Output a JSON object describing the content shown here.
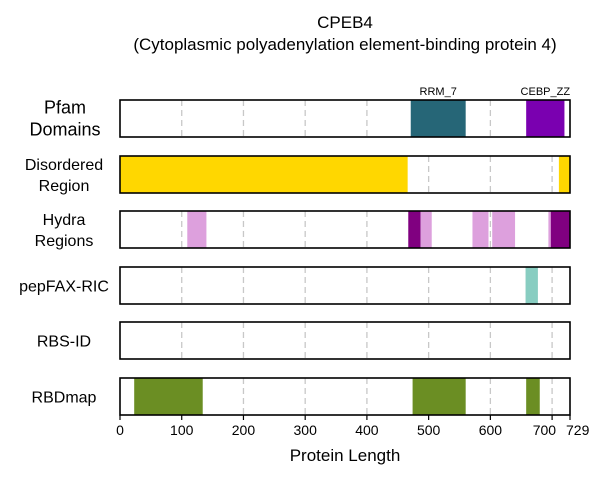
{
  "chart_data": {
    "type": "bar",
    "title": "CPEB4",
    "subtitle": "(Cytoplasmic polyadenylation element-binding protein 4)",
    "xlabel": "Protein Length",
    "xlim": [
      0,
      729
    ],
    "xticks": [
      "0",
      "100",
      "200",
      "300",
      "400",
      "500",
      "600",
      "700",
      "729"
    ],
    "xtick_values": [
      0,
      100,
      200,
      300,
      400,
      500,
      600,
      700,
      729
    ],
    "grid_x": [
      100,
      200,
      300,
      400,
      500,
      600,
      700
    ],
    "tracks": [
      {
        "label_lines": [
          "Pfam",
          "Domains"
        ],
        "segments": [
          {
            "start": 471,
            "end": 560,
            "color": "#266677",
            "label": "RRM_7"
          },
          {
            "start": 658,
            "end": 720,
            "color": "#7a00b0",
            "label": "CEBP_ZZ"
          }
        ]
      },
      {
        "label_lines": [
          "Disordered",
          "Region"
        ],
        "segments": [
          {
            "start": 0,
            "end": 466,
            "color": "#ffd700"
          },
          {
            "start": 711,
            "end": 729,
            "color": "#ffd700"
          }
        ]
      },
      {
        "label_lines": [
          "Hydra",
          "Regions"
        ],
        "segments": [
          {
            "start": 109,
            "end": 140,
            "color": "#dda0dd"
          },
          {
            "start": 467,
            "end": 487,
            "color": "#800080"
          },
          {
            "start": 487,
            "end": 505,
            "color": "#dda0dd"
          },
          {
            "start": 571,
            "end": 597,
            "color": "#dda0dd"
          },
          {
            "start": 603,
            "end": 640,
            "color": "#dda0dd"
          },
          {
            "start": 694,
            "end": 700,
            "color": "#dda0dd"
          },
          {
            "start": 698,
            "end": 729,
            "color": "#800080"
          }
        ]
      },
      {
        "label_lines": [
          "pepFAX-RIC"
        ],
        "segments": [
          {
            "start": 657,
            "end": 677,
            "color": "#88cdc1"
          }
        ]
      },
      {
        "label_lines": [
          "RBS-ID"
        ],
        "segments": []
      },
      {
        "label_lines": [
          "RBDmap"
        ],
        "segments": [
          {
            "start": 23,
            "end": 134,
            "color": "#6b8e23"
          },
          {
            "start": 474,
            "end": 560,
            "color": "#6b8e23"
          },
          {
            "start": 658,
            "end": 680,
            "color": "#6b8e23"
          }
        ]
      }
    ]
  }
}
